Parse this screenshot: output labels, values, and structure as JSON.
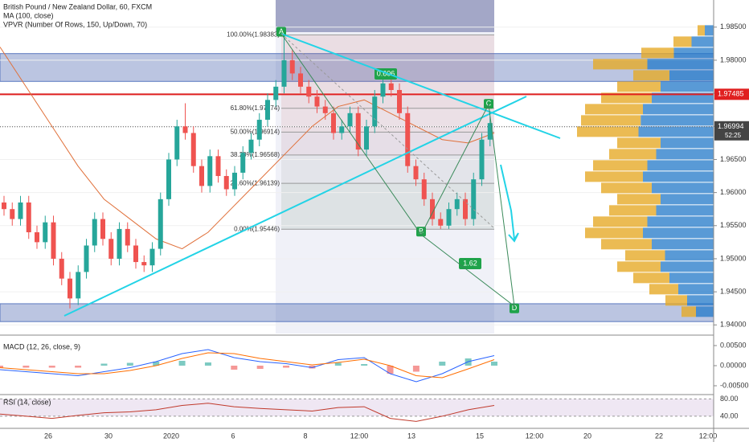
{
  "chart_data": {
    "type": "candlestick",
    "title": "British Pound / New Zealand Dollar, 60, FXCM",
    "indicators": [
      "MA (100, close)",
      "VPVR (Number Of Rows, 150, Up/Down, 70)"
    ],
    "up_color": "#26a69a",
    "down_color": "#ef5350",
    "open": [
      1.9585,
      1.9575,
      1.956,
      1.9585,
      1.954,
      1.9525,
      1.9555,
      1.95,
      1.947,
      1.944,
      1.948,
      1.952,
      1.956,
      1.953,
      1.95,
      1.9545,
      1.952,
      1.9495,
      1.949,
      1.9515,
      1.959,
      1.965,
      1.97,
      1.969,
      1.964,
      1.961,
      1.9655,
      1.9625,
      1.9605,
      1.963,
      1.966,
      1.968,
      1.971,
      1.974,
      1.976,
      1.98,
      1.978,
      1.976,
      1.9745,
      1.973,
      1.972,
      1.969,
      1.97,
      1.972,
      1.9665,
      1.97,
      1.9745,
      1.9765,
      1.9755,
      1.972,
      1.964,
      1.962,
      1.959,
      1.956,
      1.955,
      1.9575,
      1.959,
      1.956,
      1.962,
      1.968
    ],
    "high": [
      1.9595,
      1.9585,
      1.9595,
      1.9595,
      1.955,
      1.9565,
      1.9565,
      1.951,
      1.948,
      1.949,
      1.953,
      1.957,
      1.957,
      1.954,
      1.9555,
      1.9555,
      1.953,
      1.9505,
      1.9525,
      1.96,
      1.966,
      1.971,
      1.9735,
      1.97,
      1.965,
      1.9665,
      1.9665,
      1.9635,
      1.964,
      1.967,
      1.969,
      1.972,
      1.975,
      1.977,
      1.9838,
      1.9815,
      1.979,
      1.977,
      1.9755,
      1.974,
      1.973,
      1.971,
      1.973,
      1.973,
      1.971,
      1.9755,
      1.9775,
      1.978,
      1.9765,
      1.973,
      1.965,
      1.963,
      1.96,
      1.957,
      1.9585,
      1.96,
      1.96,
      1.963,
      1.969,
      1.9715
    ],
    "low": [
      1.9565,
      1.955,
      1.955,
      1.953,
      1.9515,
      1.9515,
      1.949,
      1.946,
      1.9425,
      1.943,
      1.947,
      1.951,
      1.952,
      1.949,
      1.949,
      1.951,
      1.9485,
      1.948,
      1.948,
      1.9505,
      1.958,
      1.964,
      1.968,
      1.963,
      1.96,
      1.96,
      1.9615,
      1.9595,
      1.9595,
      1.962,
      1.965,
      1.967,
      1.97,
      1.973,
      1.975,
      1.977,
      1.975,
      1.9735,
      1.972,
      1.971,
      1.968,
      1.968,
      1.969,
      1.9655,
      1.9655,
      1.969,
      1.9735,
      1.9745,
      1.971,
      1.963,
      1.961,
      1.958,
      1.955,
      1.9545,
      1.9545,
      1.9565,
      1.955,
      1.955,
      1.961,
      1.967
    ],
    "close": [
      1.9575,
      1.956,
      1.9585,
      1.954,
      1.9525,
      1.9555,
      1.95,
      1.947,
      1.944,
      1.948,
      1.952,
      1.956,
      1.953,
      1.95,
      1.9545,
      1.952,
      1.9495,
      1.949,
      1.9515,
      1.959,
      1.965,
      1.97,
      1.969,
      1.964,
      1.961,
      1.9655,
      1.9625,
      1.9605,
      1.963,
      1.966,
      1.968,
      1.971,
      1.974,
      1.976,
      1.98,
      1.978,
      1.976,
      1.9745,
      1.973,
      1.972,
      1.969,
      1.97,
      1.972,
      1.9665,
      1.97,
      1.9745,
      1.9765,
      1.9755,
      1.972,
      1.964,
      1.962,
      1.959,
      1.956,
      1.955,
      1.9575,
      1.959,
      1.956,
      1.962,
      1.968,
      1.9705
    ],
    "ma_values": [
      1.982,
      1.976,
      1.97,
      1.964,
      1.959,
      1.956,
      1.953,
      1.9515,
      1.954,
      1.958,
      1.962,
      1.966,
      1.97,
      1.973,
      1.974,
      1.972,
      1.97,
      1.968,
      1.9675,
      1.969
    ],
    "ylim": [
      1.9387,
      1.9891
    ],
    "yticks": [
      {
        "value": 1.985,
        "label": "1.98500"
      },
      {
        "value": 1.98,
        "label": "1.98000"
      },
      {
        "value": 1.975,
        "label": "1.97500"
      },
      {
        "value": 1.97,
        "label": "1.97000"
      },
      {
        "value": 1.965,
        "label": "1.96500"
      },
      {
        "value": 1.96,
        "label": "1.96000"
      },
      {
        "value": 1.955,
        "label": "1.95500"
      },
      {
        "value": 1.95,
        "label": "1.95000"
      },
      {
        "value": 1.945,
        "label": "1.94500"
      },
      {
        "value": 1.94,
        "label": "1.94000"
      }
    ],
    "time_labels": [
      "26",
      "30",
      "2020",
      "6",
      "8",
      "12:00",
      "13",
      "15",
      "12:00",
      "20",
      "22",
      "12:00"
    ],
    "fib_levels": [
      {
        "value": 1.98383,
        "label": "100.00%(1.98383)"
      },
      {
        "value": 1.97274,
        "label": "61.80%(1.97274)"
      },
      {
        "value": 1.96914,
        "label": "50.00%(1.96914)"
      },
      {
        "value": 1.96568,
        "label": "38.20%(1.96568)"
      },
      {
        "value": 1.96139,
        "label": "23.60%(1.96139)"
      },
      {
        "value": 1.95446,
        "label": "0.00%(1.95446)"
      }
    ],
    "zones": [
      [
        1.9768,
        1.981
      ],
      [
        1.9405,
        1.9432
      ]
    ],
    "pattern": [
      {
        "label": "A",
        "value": 1.9843
      },
      {
        "label": "B",
        "value": 1.9541
      },
      {
        "label": "C",
        "value": 1.9734
      },
      {
        "label": "D",
        "value": 1.9425
      }
    ],
    "ratios": [
      "0.606",
      "1.62"
    ],
    "red_line": {
      "value": 1.97485,
      "label": "1.97485"
    },
    "last_price": {
      "value": 1.96994,
      "label": "1.96994",
      "countdown": "52:25"
    },
    "volume_profile": {
      "start": 1.942,
      "step": 0.0017,
      "values": [
        40,
        60,
        80,
        100,
        120,
        110,
        140,
        160,
        150,
        130,
        120,
        140,
        160,
        150,
        130,
        120,
        170,
        165,
        160,
        140,
        120,
        100,
        150,
        90,
        50,
        20
      ]
    },
    "macd": {
      "title": "MACD (12, 26, close, 9)",
      "ylim": [
        -0.007,
        0.007
      ],
      "yticks": [
        {
          "value": 0.005,
          "label": "0.00500"
        },
        {
          "value": 0,
          "label": "0.00000"
        },
        {
          "value": -0.005,
          "label": "-0.00500"
        }
      ],
      "macd": [
        -0.001,
        -0.0015,
        -0.002,
        -0.0025,
        -0.0015,
        -0.0005,
        0.001,
        0.003,
        0.004,
        0.002,
        0.001,
        0.0005,
        -0.0005,
        0.0015,
        0.002,
        -0.002,
        -0.004,
        -0.002,
        0.001,
        0.0025
      ],
      "signal": [
        -0.0005,
        -0.001,
        -0.0015,
        -0.002,
        -0.002,
        -0.0012,
        0,
        0.0018,
        0.0032,
        0.003,
        0.0018,
        0.001,
        0.0002,
        0.0008,
        0.0016,
        0,
        -0.0025,
        -0.003,
        -0.0008,
        0.0015
      ]
    },
    "rsi": {
      "title": "RSI (14, close)",
      "ylim": [
        12,
        90
      ],
      "yticks": [
        {
          "value": 80,
          "label": "80.00"
        },
        {
          "value": 40,
          "label": "40.00"
        }
      ],
      "values": [
        45,
        40,
        35,
        42,
        48,
        50,
        55,
        65,
        70,
        62,
        58,
        55,
        52,
        60,
        62,
        35,
        28,
        40,
        55,
        65
      ]
    }
  }
}
